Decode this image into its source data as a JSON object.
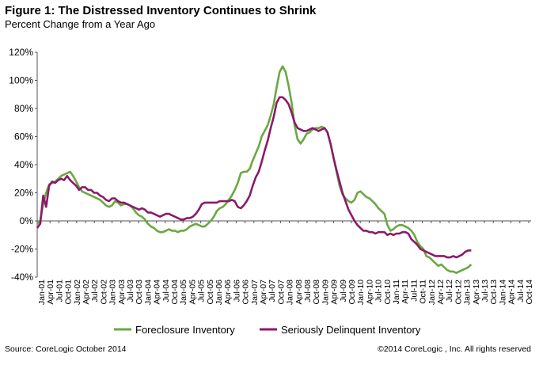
{
  "header": {
    "title": "Figure 1:  The Distressed Inventory Continues to Shrink",
    "subtitle": "Percent Change from a Year Ago"
  },
  "footer": {
    "source": "Source: CoreLogic October 2014",
    "copyright": "©2014 CoreLogic ,  Inc.  All rights reserved"
  },
  "chart_data": {
    "type": "line",
    "title": "The Distressed Inventory Continues to Shrink",
    "subtitle": "Percent Change from a Year Ago",
    "xlabel": "",
    "ylabel": "",
    "ylim": [
      -40,
      120
    ],
    "ytick_labels": [
      "120%",
      "100%",
      "80%",
      "60%",
      "40%",
      "20%",
      "0%",
      "-20%",
      "-40%"
    ],
    "yticks": [
      120,
      100,
      80,
      60,
      40,
      20,
      0,
      -20,
      -40
    ],
    "x_start": "Jan-01",
    "x_end": "Sep-14",
    "x_tick_labels": [
      "Jan-01",
      "Apr-01",
      "Jul-01",
      "Oct-01",
      "Jan-02",
      "Apr-02",
      "Jul-02",
      "Oct-02",
      "Jan-03",
      "Apr-03",
      "Jul-03",
      "Oct-03",
      "Jan-04",
      "Apr-04",
      "Jul-04",
      "Oct-04",
      "Jan-05",
      "Apr-05",
      "Jul-05",
      "Oct-05",
      "Jan-06",
      "Apr-06",
      "Jul-06",
      "Oct-06",
      "Jan-07",
      "Apr-07",
      "Jul-07",
      "Oct-07",
      "Jan-08",
      "Apr-08",
      "Jul-08",
      "Oct-08",
      "Jan-09",
      "Apr-09",
      "Jul-09",
      "Oct-09",
      "Jan-10",
      "Apr-10",
      "Jul-10",
      "Oct-10",
      "Jan-11",
      "Apr-11",
      "Jul-11",
      "Oct-11",
      "Jan-12",
      "Apr-12",
      "Jul-12",
      "Oct-12",
      "Jan-13",
      "Apr-13",
      "Jul-13",
      "Oct-13",
      "Jan-14",
      "Apr-14",
      "Jul-14",
      "Oct-14"
    ],
    "legend_position": "bottom",
    "grid": false,
    "series": [
      {
        "name": "Foreclosure Inventory",
        "color": "#6aa842",
        "points": [
          [
            0,
            -2
          ],
          [
            1,
            0
          ],
          [
            2,
            12
          ],
          [
            3,
            20
          ],
          [
            4,
            26
          ],
          [
            5,
            27
          ],
          [
            6,
            28
          ],
          [
            7,
            30
          ],
          [
            8,
            32
          ],
          [
            9,
            33
          ],
          [
            10,
            34
          ],
          [
            11,
            35
          ],
          [
            12,
            32
          ],
          [
            13,
            28
          ],
          [
            14,
            24
          ],
          [
            15,
            21
          ],
          [
            16,
            20
          ],
          [
            17,
            19
          ],
          [
            18,
            18
          ],
          [
            19,
            17
          ],
          [
            20,
            16
          ],
          [
            21,
            15
          ],
          [
            22,
            13
          ],
          [
            23,
            11
          ],
          [
            24,
            10
          ],
          [
            25,
            11
          ],
          [
            26,
            14
          ],
          [
            27,
            13
          ],
          [
            28,
            11
          ],
          [
            29,
            12
          ],
          [
            30,
            12
          ],
          [
            31,
            11
          ],
          [
            32,
            9
          ],
          [
            33,
            6
          ],
          [
            34,
            4
          ],
          [
            35,
            3
          ],
          [
            36,
            1
          ],
          [
            37,
            -2
          ],
          [
            38,
            -4
          ],
          [
            39,
            -5
          ],
          [
            40,
            -7
          ],
          [
            41,
            -8
          ],
          [
            42,
            -8
          ],
          [
            43,
            -7
          ],
          [
            44,
            -6
          ],
          [
            45,
            -7
          ],
          [
            46,
            -7
          ],
          [
            47,
            -8
          ],
          [
            48,
            -7
          ],
          [
            49,
            -7
          ],
          [
            50,
            -6
          ],
          [
            51,
            -4
          ],
          [
            52,
            -3
          ],
          [
            53,
            -2
          ],
          [
            54,
            -3
          ],
          [
            55,
            -4
          ],
          [
            56,
            -4
          ],
          [
            57,
            -2
          ],
          [
            58,
            0
          ],
          [
            59,
            3
          ],
          [
            60,
            7
          ],
          [
            61,
            9
          ],
          [
            62,
            10
          ],
          [
            63,
            12
          ],
          [
            64,
            15
          ],
          [
            65,
            18
          ],
          [
            66,
            22
          ],
          [
            67,
            27
          ],
          [
            68,
            34
          ],
          [
            69,
            35
          ],
          [
            70,
            35
          ],
          [
            71,
            37
          ],
          [
            72,
            43
          ],
          [
            73,
            48
          ],
          [
            74,
            53
          ],
          [
            75,
            60
          ],
          [
            76,
            64
          ],
          [
            77,
            68
          ],
          [
            78,
            75
          ],
          [
            79,
            83
          ],
          [
            80,
            95
          ],
          [
            81,
            106
          ],
          [
            82,
            110
          ],
          [
            83,
            106
          ],
          [
            84,
            96
          ],
          [
            85,
            84
          ],
          [
            86,
            68
          ],
          [
            87,
            58
          ],
          [
            88,
            55
          ],
          [
            89,
            58
          ],
          [
            90,
            62
          ],
          [
            91,
            63
          ],
          [
            92,
            65
          ],
          [
            93,
            66
          ],
          [
            94,
            66
          ],
          [
            95,
            67
          ],
          [
            96,
            66
          ],
          [
            97,
            63
          ],
          [
            98,
            55
          ],
          [
            99,
            45
          ],
          [
            100,
            35
          ],
          [
            101,
            25
          ],
          [
            102,
            19
          ],
          [
            103,
            16
          ],
          [
            104,
            14
          ],
          [
            105,
            13
          ],
          [
            106,
            15
          ],
          [
            107,
            20
          ],
          [
            108,
            21
          ],
          [
            109,
            19
          ],
          [
            110,
            17
          ],
          [
            111,
            16
          ],
          [
            112,
            14
          ],
          [
            113,
            12
          ],
          [
            114,
            9
          ],
          [
            115,
            7
          ],
          [
            116,
            5
          ],
          [
            117,
            -3
          ],
          [
            118,
            -7
          ],
          [
            119,
            -6
          ],
          [
            120,
            -4
          ],
          [
            121,
            -3
          ],
          [
            122,
            -3
          ],
          [
            123,
            -4
          ],
          [
            124,
            -5
          ],
          [
            125,
            -7
          ],
          [
            126,
            -10
          ],
          [
            127,
            -15
          ],
          [
            128,
            -18
          ],
          [
            129,
            -20
          ],
          [
            130,
            -25
          ],
          [
            131,
            -26
          ],
          [
            132,
            -28
          ],
          [
            133,
            -30
          ],
          [
            134,
            -32
          ],
          [
            135,
            -31
          ],
          [
            136,
            -33
          ],
          [
            137,
            -35
          ],
          [
            138,
            -36
          ],
          [
            139,
            -36
          ],
          [
            140,
            -37
          ],
          [
            141,
            -36
          ],
          [
            142,
            -35
          ],
          [
            143,
            -34
          ],
          [
            144,
            -33
          ],
          [
            145,
            -31
          ]
        ]
      },
      {
        "name": "Seriously Delinquent Inventory",
        "color": "#8b1a6b",
        "points": [
          [
            0,
            -5
          ],
          [
            1,
            -2
          ],
          [
            2,
            18
          ],
          [
            3,
            10
          ],
          [
            4,
            25
          ],
          [
            5,
            28
          ],
          [
            6,
            27
          ],
          [
            7,
            29
          ],
          [
            8,
            30
          ],
          [
            9,
            29
          ],
          [
            10,
            32
          ],
          [
            11,
            29
          ],
          [
            12,
            27
          ],
          [
            13,
            25
          ],
          [
            14,
            22
          ],
          [
            15,
            24
          ],
          [
            16,
            24
          ],
          [
            17,
            22
          ],
          [
            18,
            22
          ],
          [
            19,
            20
          ],
          [
            20,
            20
          ],
          [
            21,
            18
          ],
          [
            22,
            17
          ],
          [
            23,
            15
          ],
          [
            24,
            14
          ],
          [
            25,
            16
          ],
          [
            26,
            16
          ],
          [
            27,
            14
          ],
          [
            28,
            13
          ],
          [
            29,
            13
          ],
          [
            30,
            12
          ],
          [
            31,
            11
          ],
          [
            32,
            10
          ],
          [
            33,
            9
          ],
          [
            34,
            8
          ],
          [
            35,
            9
          ],
          [
            36,
            8
          ],
          [
            37,
            6
          ],
          [
            38,
            6
          ],
          [
            39,
            5
          ],
          [
            40,
            4
          ],
          [
            41,
            3
          ],
          [
            42,
            4
          ],
          [
            43,
            5
          ],
          [
            44,
            5
          ],
          [
            45,
            4
          ],
          [
            46,
            3
          ],
          [
            47,
            2
          ],
          [
            48,
            1
          ],
          [
            49,
            1
          ],
          [
            50,
            2
          ],
          [
            51,
            2
          ],
          [
            52,
            3
          ],
          [
            53,
            5
          ],
          [
            54,
            8
          ],
          [
            55,
            12
          ],
          [
            56,
            13
          ],
          [
            57,
            13
          ],
          [
            58,
            13
          ],
          [
            59,
            13
          ],
          [
            60,
            13
          ],
          [
            61,
            14
          ],
          [
            62,
            14
          ],
          [
            63,
            14
          ],
          [
            64,
            14
          ],
          [
            65,
            15
          ],
          [
            66,
            14
          ],
          [
            67,
            10
          ],
          [
            68,
            9
          ],
          [
            69,
            11
          ],
          [
            70,
            14
          ],
          [
            71,
            18
          ],
          [
            72,
            25
          ],
          [
            73,
            31
          ],
          [
            74,
            35
          ],
          [
            75,
            42
          ],
          [
            76,
            50
          ],
          [
            77,
            57
          ],
          [
            78,
            66
          ],
          [
            79,
            74
          ],
          [
            80,
            84
          ],
          [
            81,
            88
          ],
          [
            82,
            88
          ],
          [
            83,
            86
          ],
          [
            84,
            83
          ],
          [
            85,
            77
          ],
          [
            86,
            70
          ],
          [
            87,
            66
          ],
          [
            88,
            65
          ],
          [
            89,
            64
          ],
          [
            90,
            64
          ],
          [
            91,
            65
          ],
          [
            92,
            66
          ],
          [
            93,
            65
          ],
          [
            94,
            64
          ],
          [
            95,
            65
          ],
          [
            96,
            66
          ],
          [
            97,
            63
          ],
          [
            98,
            55
          ],
          [
            99,
            45
          ],
          [
            100,
            36
          ],
          [
            101,
            28
          ],
          [
            102,
            20
          ],
          [
            103,
            14
          ],
          [
            104,
            8
          ],
          [
            105,
            4
          ],
          [
            106,
            0
          ],
          [
            107,
            -3
          ],
          [
            108,
            -5
          ],
          [
            109,
            -7
          ],
          [
            110,
            -7
          ],
          [
            111,
            -8
          ],
          [
            112,
            -8
          ],
          [
            113,
            -9
          ],
          [
            114,
            -8
          ],
          [
            115,
            -8
          ],
          [
            116,
            -8
          ],
          [
            117,
            -10
          ],
          [
            118,
            -9
          ],
          [
            119,
            -10
          ],
          [
            120,
            -9
          ],
          [
            121,
            -9
          ],
          [
            122,
            -8
          ],
          [
            123,
            -8
          ],
          [
            124,
            -9
          ],
          [
            125,
            -13
          ],
          [
            126,
            -15
          ],
          [
            127,
            -17
          ],
          [
            128,
            -20
          ],
          [
            129,
            -21
          ],
          [
            130,
            -22
          ],
          [
            131,
            -23
          ],
          [
            132,
            -24
          ],
          [
            133,
            -25
          ],
          [
            134,
            -25
          ],
          [
            135,
            -25
          ],
          [
            136,
            -25
          ],
          [
            137,
            -26
          ],
          [
            138,
            -26
          ],
          [
            139,
            -25
          ],
          [
            140,
            -26
          ],
          [
            141,
            -25
          ],
          [
            142,
            -24
          ],
          [
            143,
            -22
          ],
          [
            144,
            -21
          ],
          [
            145,
            -21
          ]
        ]
      }
    ]
  }
}
